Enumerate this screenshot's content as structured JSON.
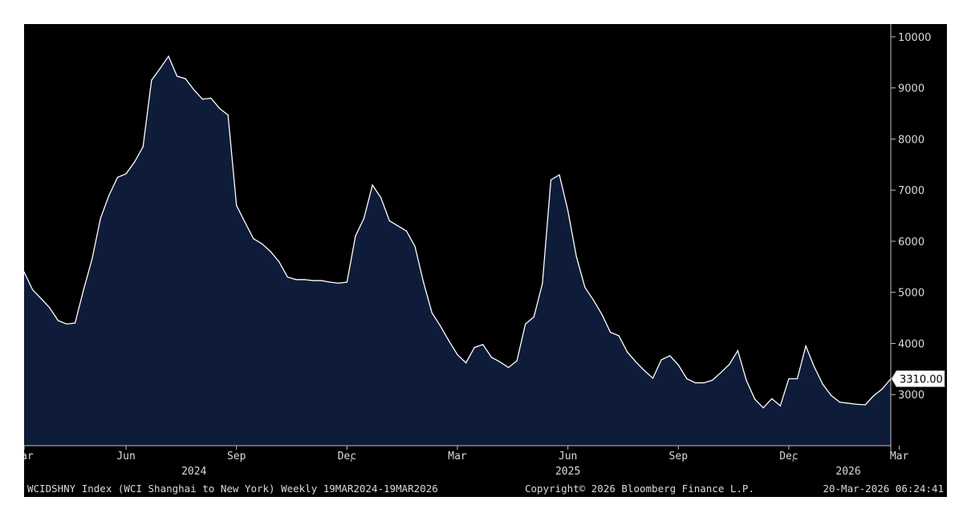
{
  "chart_data": {
    "type": "area",
    "series": [
      {
        "values": [
          5400,
          5050,
          4880,
          4700,
          4450,
          4380,
          4400,
          5050,
          5650,
          6450,
          6900,
          7250,
          7320,
          7550,
          7850,
          9150,
          9380,
          9620,
          9230,
          9180,
          8960,
          8780,
          8800,
          8600,
          8470,
          6700,
          6370,
          6050,
          5950,
          5800,
          5600,
          5300,
          5250,
          5250,
          5230,
          5230,
          5200,
          5180,
          5200,
          6100,
          6450,
          7100,
          6850,
          6400,
          6300,
          6200,
          5900,
          5200,
          4600,
          4340,
          4050,
          3780,
          3620,
          3920,
          3980,
          3730,
          3640,
          3530,
          3660,
          4380,
          4520,
          5170,
          7200,
          7300,
          6600,
          5700,
          5100,
          4850,
          4570,
          4220,
          4150,
          3830,
          3640,
          3470,
          3320,
          3680,
          3760,
          3580,
          3310,
          3230,
          3230,
          3280,
          3430,
          3590,
          3860,
          3280,
          2910,
          2740,
          2920,
          2780,
          3310,
          3310,
          3950,
          3540,
          3200,
          2980,
          2850,
          2830,
          2810,
          2800,
          2980,
          3110,
          3310
        ]
      }
    ],
    "x_start": "19MAR2024",
    "x_end": "19MAR2026",
    "x_ticks": [
      {
        "label": "Mar",
        "week": 0
      },
      {
        "label": "Jun",
        "week": 12
      },
      {
        "label": "Sep",
        "week": 25
      },
      {
        "label": "Dec",
        "week": 38
      },
      {
        "label": "Mar",
        "week": 51
      },
      {
        "label": "Jun",
        "week": 64
      },
      {
        "label": "Sep",
        "week": 77
      },
      {
        "label": "Dec",
        "week": 90
      },
      {
        "label": "Mar",
        "week": 103
      }
    ],
    "year_labels": [
      {
        "label": "2024",
        "week": 20
      },
      {
        "label": "2025",
        "week": 64
      },
      {
        "label": "2026",
        "week": 97
      }
    ],
    "year_separators": [
      38.5,
      90.5
    ],
    "yticks": [
      3000,
      4000,
      5000,
      6000,
      7000,
      8000,
      9000,
      10000
    ],
    "ylim": [
      2000,
      10250
    ],
    "last_value_label": "3310.00",
    "grid": false,
    "colors": {
      "background": "#000000",
      "area_fill": "#0e1c3a",
      "line": "#ffffff",
      "axis": "#bfbfbf",
      "text": "#d9d9d9"
    }
  },
  "footer": {
    "left": "WCIDSHNY Index (WCI Shanghai to New York) Weekly 19MAR2024-19MAR2026",
    "center": "Copyright© 2026 Bloomberg Finance L.P.",
    "right": "20-Mar-2026 06:24:41"
  }
}
